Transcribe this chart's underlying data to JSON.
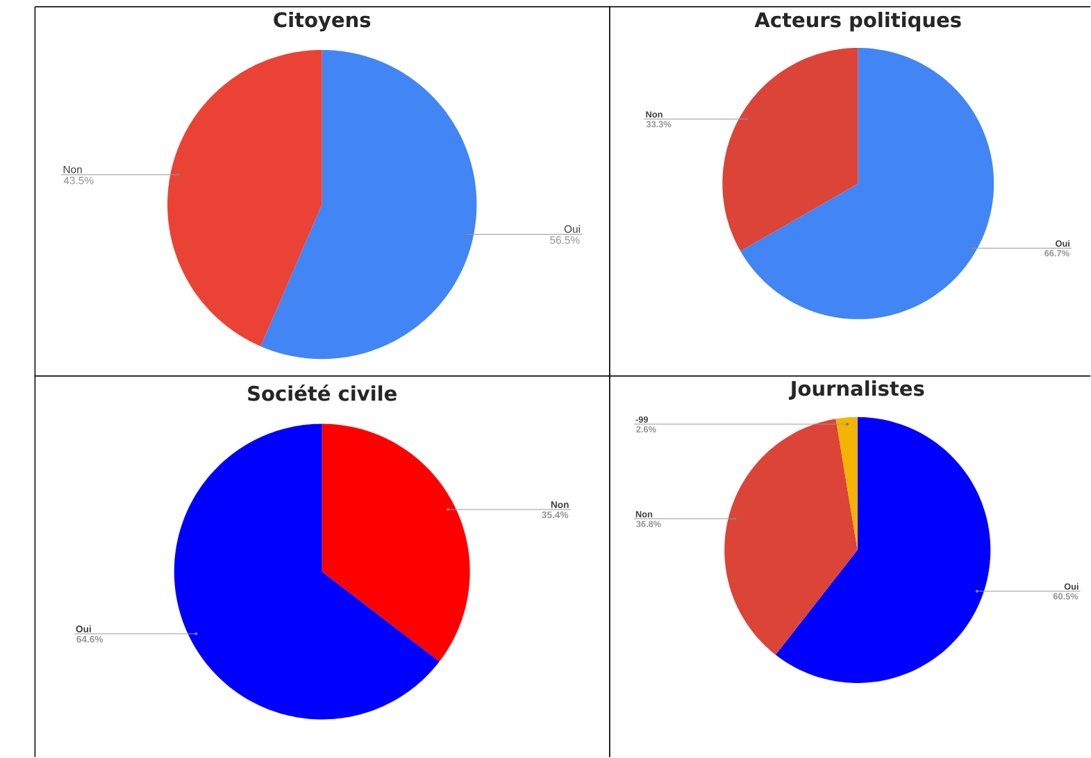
{
  "chart_data": [
    {
      "type": "pie",
      "title": "Citoyens",
      "categories": [
        "Oui",
        "Non"
      ],
      "values": [
        56.5,
        43.5
      ],
      "colors": [
        "#4285f4",
        "#ea4335"
      ],
      "value_labels": [
        "56.5%",
        "43.5%"
      ]
    },
    {
      "type": "pie",
      "title": "Acteurs politiques",
      "categories": [
        "Oui",
        "Non"
      ],
      "values": [
        66.7,
        33.3
      ],
      "colors": [
        "#4285f4",
        "#db4437"
      ],
      "value_labels": [
        "66.7%",
        "33.3%"
      ]
    },
    {
      "type": "pie",
      "title": "Société civile",
      "categories": [
        "Non",
        "Oui"
      ],
      "values": [
        35.4,
        64.6
      ],
      "colors": [
        "#ff0000",
        "#0000ff"
      ],
      "value_labels": [
        "35.4%",
        "64.6%"
      ]
    },
    {
      "type": "pie",
      "title": "Journalistes",
      "categories": [
        "Oui",
        "Non",
        "-99"
      ],
      "values": [
        60.5,
        36.8,
        2.6
      ],
      "colors": [
        "#0000ff",
        "#db4437",
        "#f4b400"
      ],
      "value_labels": [
        "60.5%",
        "36.8%",
        "2.6%"
      ]
    }
  ]
}
